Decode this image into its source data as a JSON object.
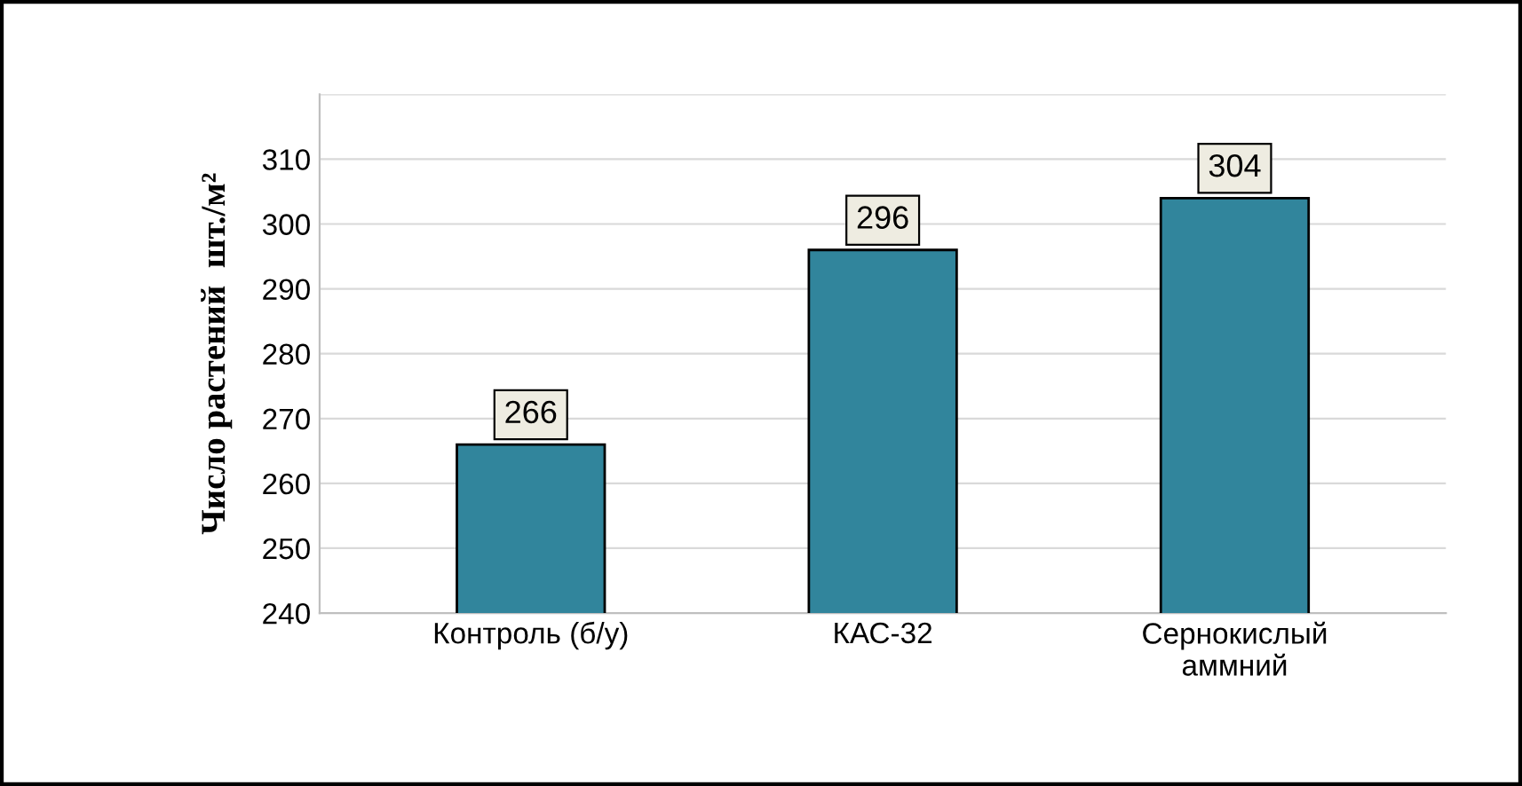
{
  "chart_data": {
    "type": "bar",
    "ylabel": "Число растений  шт./м²",
    "categories": [
      "Контроль (б/у)",
      "КАС-32",
      "Сернокислый\nаммний"
    ],
    "values": [
      266,
      296,
      304
    ],
    "color": "#31859c",
    "ylim": [
      240,
      320
    ],
    "yticks": [
      240,
      250,
      260,
      270,
      280,
      290,
      300,
      310,
      {
        "value": 320,
        "label": null
      }
    ],
    "grid": "y",
    "data_labels": true
  }
}
